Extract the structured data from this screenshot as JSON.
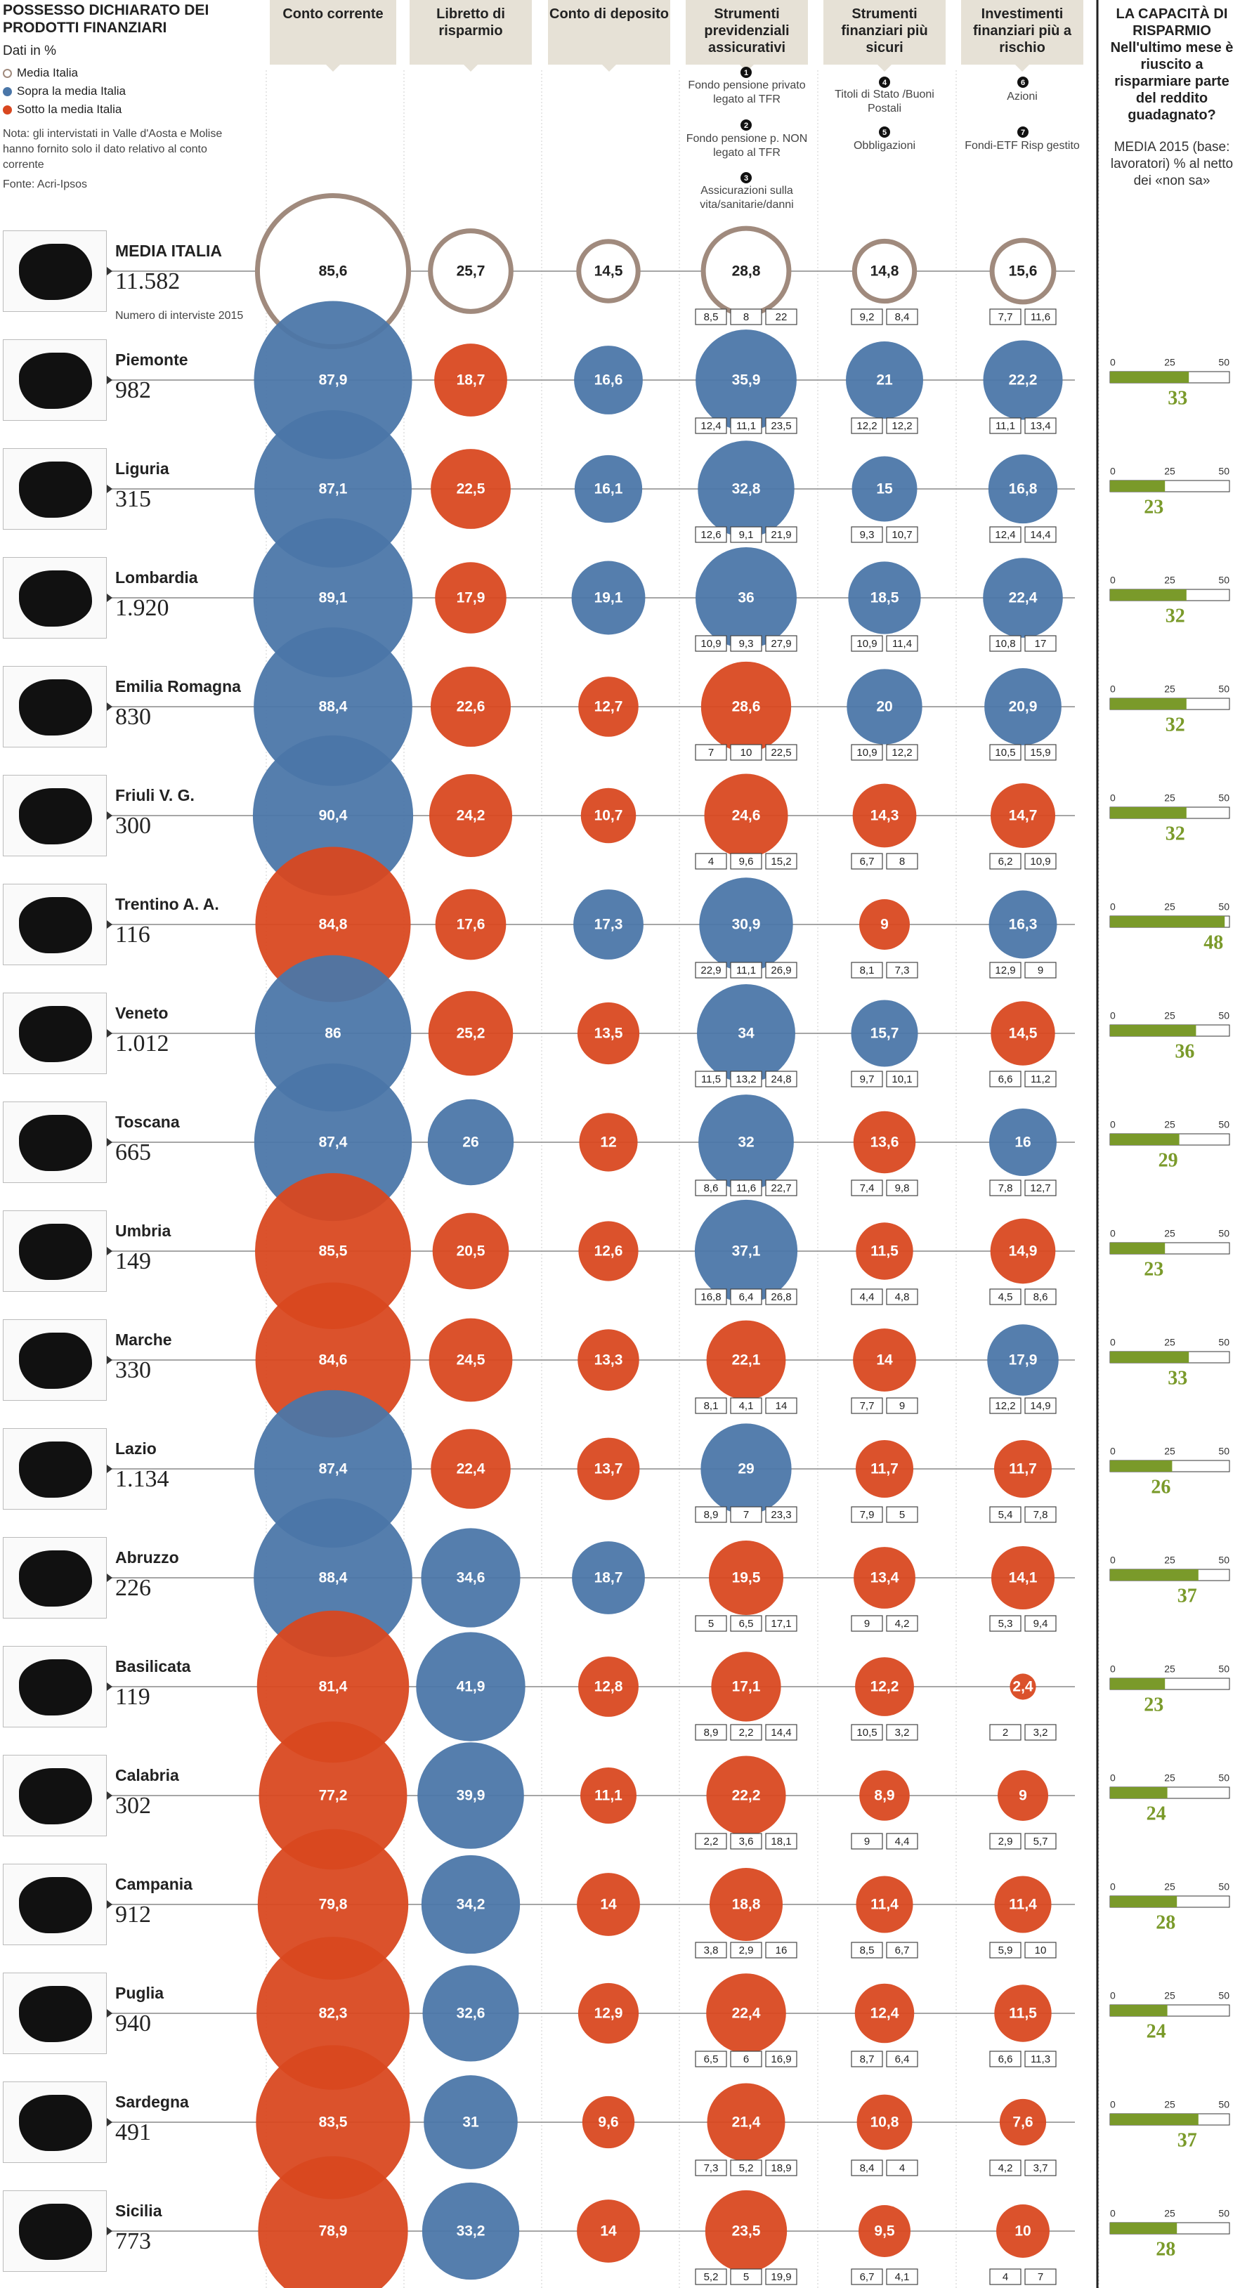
{
  "legend": {
    "title": "POSSESSO DICHIARATO DEI PRODOTTI FINANZIARI",
    "subtitle": "Dati in %",
    "items": [
      {
        "label": "Media Italia",
        "color": "#a08a7d",
        "style": "ring"
      },
      {
        "label": "Sopra la media Italia",
        "color": "#4a76a8",
        "style": "fill"
      },
      {
        "label": "Sotto la media Italia",
        "color": "#d9471f",
        "style": "fill"
      }
    ],
    "note": "Nota: gli intervistati in Valle d'Aosta e Molise hanno fornito solo il dato relativo al conto corrente",
    "source": "Fonte: Acri-Ipsos"
  },
  "columns": [
    {
      "label": "Conto corrente"
    },
    {
      "label": "Libretto di risparmio"
    },
    {
      "label": "Conto di deposito"
    },
    {
      "label": "Strumenti previdenziali assicurativi"
    },
    {
      "label": "Strumenti finanziari più sicuri"
    },
    {
      "label": "Investimenti finanziari più a rischio"
    }
  ],
  "subcategories": {
    "previdenziali": [
      "Fondo pensione privato legato al TFR",
      "Fondo pensione p. NON legato al TFR",
      "Assicurazioni sulla vita/sanitarie/danni"
    ],
    "sicuri": [
      "Titoli di Stato /Buoni Postali",
      "Obbligazioni"
    ],
    "rischio": [
      "Azioni",
      "Fondi-ETF Risp gestito"
    ],
    "markers": [
      "1",
      "2",
      "3",
      "4",
      "5",
      "6",
      "7"
    ]
  },
  "capacity": {
    "title": "LA CAPACITÀ DI RISPARMIO Nell'ultimo mese è riuscito a risparmiare parte del reddito guadagnato?",
    "subtitle": "MEDIA 2015 (base: lavoratori) % al netto dei «non sa»",
    "bar_color": "#7a9a2a",
    "axis_labels": [
      "0",
      "25",
      "50"
    ]
  },
  "media_note": "Numero di interviste 2015",
  "chart_data": {
    "type": "bubble",
    "title": "POSSESSO DICHIARATO DEI PRODOTTI FINANZIARI",
    "unit": "%",
    "categories": [
      "Conto corrente",
      "Libretto di risparmio",
      "Conto di deposito",
      "Strumenti previdenziali assicurativi",
      "Strumenti finanziari più sicuri",
      "Investimenti finanziari più a rischio"
    ],
    "capacity_range": [
      0,
      50
    ],
    "rows": [
      {
        "name": "MEDIA ITALIA",
        "n": "11.582",
        "values": [
          "85,6",
          "25,7",
          "14,5",
          "28,8",
          "14,8",
          "15,6"
        ],
        "sub_prev": [
          "8,5",
          "8",
          "22"
        ],
        "sub_sicuri": [
          "9,2",
          "8,4"
        ],
        "sub_rischio": [
          "7,7",
          "11,6"
        ],
        "capacity": null
      },
      {
        "name": "Piemonte",
        "n": "982",
        "values": [
          "87,9",
          "18,7",
          "16,6",
          "35,9",
          "21",
          "22,2"
        ],
        "sub_prev": [
          "12,4",
          "11,1",
          "23,5"
        ],
        "sub_sicuri": [
          "12,2",
          "12,2"
        ],
        "sub_rischio": [
          "11,1",
          "13,4"
        ],
        "capacity": 33
      },
      {
        "name": "Liguria",
        "n": "315",
        "values": [
          "87,1",
          "22,5",
          "16,1",
          "32,8",
          "15",
          "16,8"
        ],
        "sub_prev": [
          "12,6",
          "9,1",
          "21,9"
        ],
        "sub_sicuri": [
          "9,3",
          "10,7"
        ],
        "sub_rischio": [
          "12,4",
          "14,4"
        ],
        "capacity": 23
      },
      {
        "name": "Lombardia",
        "n": "1.920",
        "values": [
          "89,1",
          "17,9",
          "19,1",
          "36",
          "18,5",
          "22,4"
        ],
        "sub_prev": [
          "10,9",
          "9,3",
          "27,9"
        ],
        "sub_sicuri": [
          "10,9",
          "11,4"
        ],
        "sub_rischio": [
          "10,8",
          "17"
        ],
        "capacity": 32
      },
      {
        "name": "Emilia Romagna",
        "n": "830",
        "values": [
          "88,4",
          "22,6",
          "12,7",
          "28,6",
          "20",
          "20,9"
        ],
        "sub_prev": [
          "7",
          "10",
          "22,5"
        ],
        "sub_sicuri": [
          "10,9",
          "12,2"
        ],
        "sub_rischio": [
          "10,5",
          "15,9"
        ],
        "capacity": 32
      },
      {
        "name": "Friuli V. G.",
        "n": "300",
        "values": [
          "90,4",
          "24,2",
          "10,7",
          "24,6",
          "14,3",
          "14,7"
        ],
        "sub_prev": [
          "4",
          "9,6",
          "15,2"
        ],
        "sub_sicuri": [
          "6,7",
          "8"
        ],
        "sub_rischio": [
          "6,2",
          "10,9"
        ],
        "capacity": 32
      },
      {
        "name": "Trentino A. A.",
        "n": "116",
        "values": [
          "84,8",
          "17,6",
          "17,3",
          "30,9",
          "9",
          "16,3"
        ],
        "sub_prev": [
          "22,9",
          "11,1",
          "26,9"
        ],
        "sub_sicuri": [
          "8,1",
          "7,3"
        ],
        "sub_rischio": [
          "12,9",
          "9"
        ],
        "capacity": 48
      },
      {
        "name": "Veneto",
        "n": "1.012",
        "values": [
          "86",
          "25,2",
          "13,5",
          "34",
          "15,7",
          "14,5"
        ],
        "sub_prev": [
          "11,5",
          "13,2",
          "24,8"
        ],
        "sub_sicuri": [
          "9,7",
          "10,1"
        ],
        "sub_rischio": [
          "6,6",
          "11,2"
        ],
        "capacity": 36
      },
      {
        "name": "Toscana",
        "n": "665",
        "values": [
          "87,4",
          "26",
          "12",
          "32",
          "13,6",
          "16"
        ],
        "sub_prev": [
          "8,6",
          "11,6",
          "22,7"
        ],
        "sub_sicuri": [
          "7,4",
          "9,8"
        ],
        "sub_rischio": [
          "7,8",
          "12,7"
        ],
        "capacity": 29
      },
      {
        "name": "Umbria",
        "n": "149",
        "values": [
          "85,5",
          "20,5",
          "12,6",
          "37,1",
          "11,5",
          "14,9"
        ],
        "sub_prev": [
          "16,8",
          "6,4",
          "26,8"
        ],
        "sub_sicuri": [
          "4,4",
          "4,8"
        ],
        "sub_rischio": [
          "4,5",
          "8,6"
        ],
        "capacity": 23
      },
      {
        "name": "Marche",
        "n": "330",
        "values": [
          "84,6",
          "24,5",
          "13,3",
          "22,1",
          "14",
          "17,9"
        ],
        "sub_prev": [
          "8,1",
          "4,1",
          "14"
        ],
        "sub_sicuri": [
          "7,7",
          "9"
        ],
        "sub_rischio": [
          "12,2",
          "14,9"
        ],
        "capacity": 33
      },
      {
        "name": "Lazio",
        "n": "1.134",
        "values": [
          "87,4",
          "22,4",
          "13,7",
          "29",
          "11,7",
          "11,7"
        ],
        "sub_prev": [
          "8,9",
          "7",
          "23,3"
        ],
        "sub_sicuri": [
          "7,9",
          "5"
        ],
        "sub_rischio": [
          "5,4",
          "7,8"
        ],
        "capacity": 26
      },
      {
        "name": "Abruzzo",
        "n": "226",
        "values": [
          "88,4",
          "34,6",
          "18,7",
          "19,5",
          "13,4",
          "14,1"
        ],
        "sub_prev": [
          "5",
          "6,5",
          "17,1"
        ],
        "sub_sicuri": [
          "9",
          "4,2"
        ],
        "sub_rischio": [
          "5,3",
          "9,4"
        ],
        "capacity": 37
      },
      {
        "name": "Basilicata",
        "n": "119",
        "values": [
          "81,4",
          "41,9",
          "12,8",
          "17,1",
          "12,2",
          "2,4"
        ],
        "sub_prev": [
          "8,9",
          "2,2",
          "14,4"
        ],
        "sub_sicuri": [
          "10,5",
          "3,2"
        ],
        "sub_rischio": [
          "2",
          "3,2"
        ],
        "capacity": 23
      },
      {
        "name": "Calabria",
        "n": "302",
        "values": [
          "77,2",
          "39,9",
          "11,1",
          "22,2",
          "8,9",
          "9"
        ],
        "sub_prev": [
          "2,2",
          "3,6",
          "18,1"
        ],
        "sub_sicuri": [
          "9",
          "4,4"
        ],
        "sub_rischio": [
          "2,9",
          "5,7"
        ],
        "capacity": 24
      },
      {
        "name": "Campania",
        "n": "912",
        "values": [
          "79,8",
          "34,2",
          "14",
          "18,8",
          "11,4",
          "11,4"
        ],
        "sub_prev": [
          "3,8",
          "2,9",
          "16"
        ],
        "sub_sicuri": [
          "8,5",
          "6,7"
        ],
        "sub_rischio": [
          "5,9",
          "10"
        ],
        "capacity": 28
      },
      {
        "name": "Puglia",
        "n": "940",
        "values": [
          "82,3",
          "32,6",
          "12,9",
          "22,4",
          "12,4",
          "11,5"
        ],
        "sub_prev": [
          "6,5",
          "6",
          "16,9"
        ],
        "sub_sicuri": [
          "8,7",
          "6,4"
        ],
        "sub_rischio": [
          "6,6",
          "11,3"
        ],
        "capacity": 24
      },
      {
        "name": "Sardegna",
        "n": "491",
        "values": [
          "83,5",
          "31",
          "9,6",
          "21,4",
          "10,8",
          "7,6"
        ],
        "sub_prev": [
          "7,3",
          "5,2",
          "18,9"
        ],
        "sub_sicuri": [
          "8,4",
          "4"
        ],
        "sub_rischio": [
          "4,2",
          "3,7"
        ],
        "capacity": 37
      },
      {
        "name": "Sicilia",
        "n": "773",
        "values": [
          "78,9",
          "33,2",
          "14",
          "23,5",
          "9,5",
          "10"
        ],
        "sub_prev": [
          "5,2",
          "5",
          "19,9"
        ],
        "sub_sicuri": [
          "6,7",
          "4,1"
        ],
        "sub_rischio": [
          "4",
          "7"
        ],
        "capacity": 28
      }
    ]
  }
}
